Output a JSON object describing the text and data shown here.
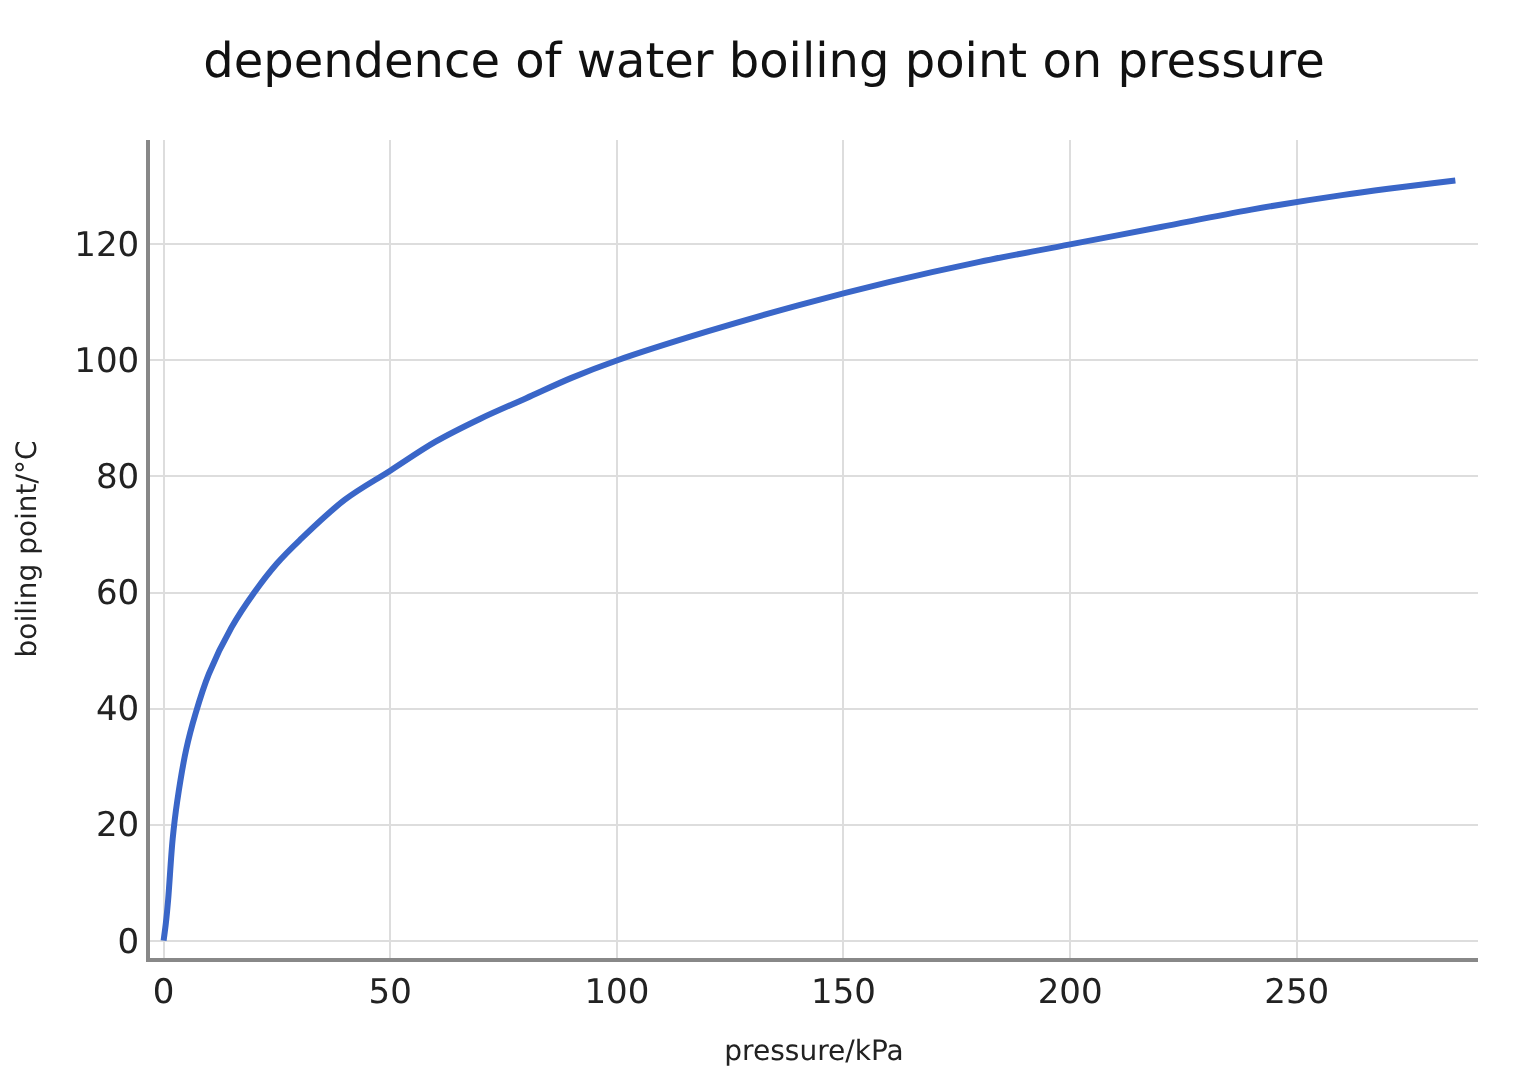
{
  "chart_data": {
    "type": "line",
    "title": "dependence of water boiling point on pressure",
    "xlabel": "pressure/kPa",
    "ylabel": "boiling point/°C",
    "x": [
      0,
      0.5,
      1,
      2,
      3,
      5,
      7,
      10,
      15,
      20,
      25,
      30,
      40,
      50,
      60,
      70,
      80,
      90,
      100,
      120,
      140,
      160,
      180,
      200,
      220,
      240,
      260,
      285
    ],
    "series": [
      {
        "color": "#3a66c8",
        "values": [
          0,
          3,
          7,
          17.5,
          24,
          33,
          39,
          46,
          54,
          60,
          65,
          69,
          76,
          81,
          86,
          90,
          93.5,
          97,
          100,
          105,
          109.5,
          113.5,
          117,
          120,
          123,
          126,
          128.5,
          131
        ]
      }
    ],
    "xlim": [
      -3,
      290
    ],
    "ylim": [
      -3,
      138
    ],
    "xticks": [
      0,
      50,
      100,
      150,
      200,
      250
    ],
    "yticks": [
      0,
      20,
      40,
      60,
      80,
      100,
      120
    ],
    "grid": true,
    "legend": false,
    "marker": "none",
    "line_style": "solid"
  }
}
